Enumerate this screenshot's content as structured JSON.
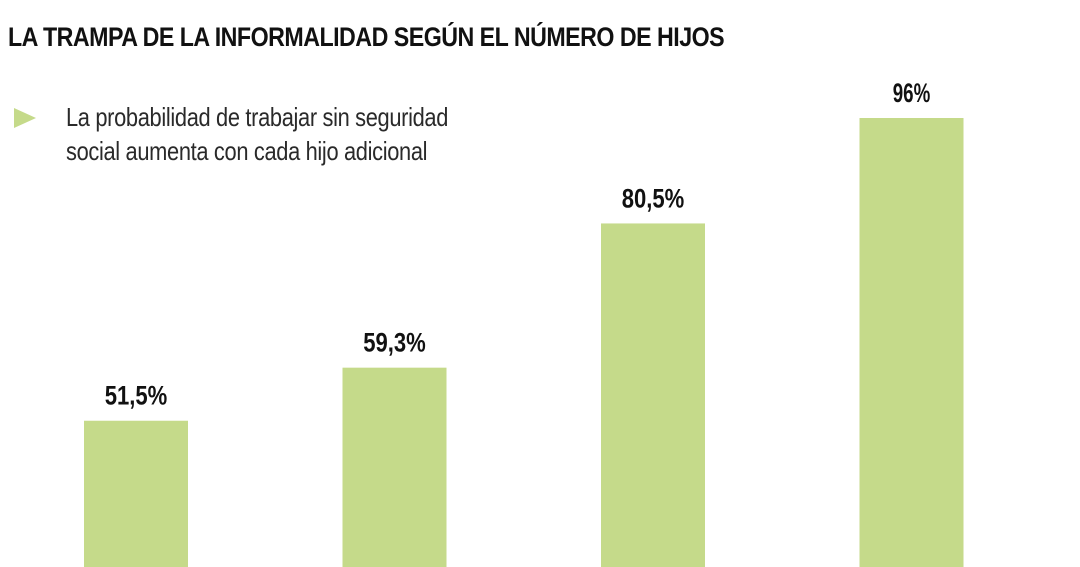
{
  "header": {
    "title": "LA TRAMPA DE LA INFORMALIDAD SEGÚN EL NÚMERO DE HIJOS",
    "subtitle_line1": "La probabilidad de trabajar sin seguridad",
    "subtitle_line2": "social aumenta con cada hijo adicional"
  },
  "colors": {
    "bar": "#c5da8a",
    "bullet": "#c5da8a"
  },
  "icons": {
    "bullet": "triangle-right-icon"
  },
  "chart_data": {
    "type": "bar",
    "categories": [
      "",
      "",
      "",
      ""
    ],
    "values": [
      51.5,
      59.3,
      80.5,
      96
    ],
    "labels": [
      "51,5%",
      "59,3%",
      "80,5%",
      "96%"
    ],
    "title": "LA TRAMPA DE LA INFORMALIDAD SEGÚN EL NÚMERO DE HIJOS",
    "subtitle": "La probabilidad de trabajar sin seguridad social aumenta con cada hijo adicional",
    "xlabel": "",
    "ylabel": "",
    "ylim": [
      30,
      100
    ],
    "grid": false,
    "legend": "none"
  }
}
